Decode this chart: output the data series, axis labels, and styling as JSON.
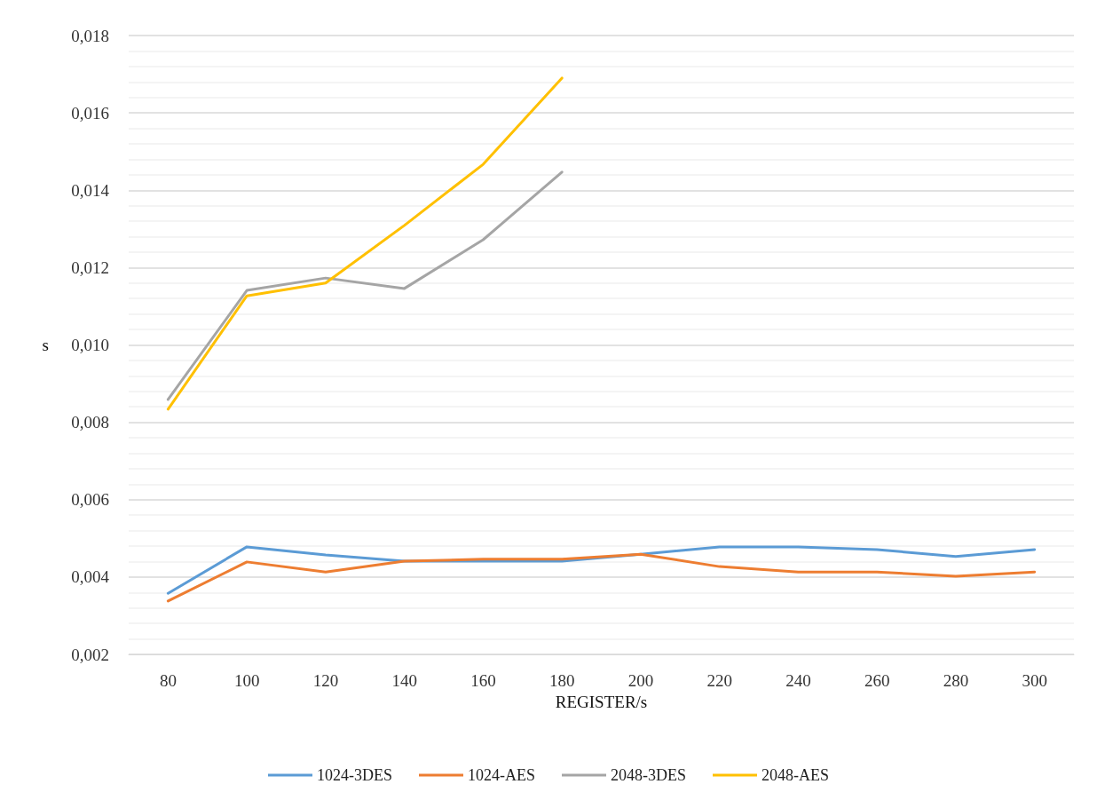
{
  "chart_data": {
    "type": "line",
    "xlabel": "REGISTER/s",
    "ylabel": "s",
    "categories": [
      "80",
      "100",
      "120",
      "140",
      "160",
      "180",
      "200",
      "220",
      "240",
      "260",
      "280",
      "300"
    ],
    "series": [
      {
        "name": "1024-3DES",
        "color": "#5b9bd5",
        "values": [
          0.00358,
          0.00478,
          0.00457,
          0.00441,
          0.00441,
          0.00441,
          0.00459,
          0.00478,
          0.00478,
          0.00471,
          0.00453,
          0.00471
        ]
      },
      {
        "name": "1024-AES",
        "color": "#ed7d31",
        "values": [
          0.00338,
          0.00439,
          0.00413,
          0.00441,
          0.00446,
          0.00446,
          0.00459,
          0.00427,
          0.00413,
          0.00413,
          0.00402,
          0.00413
        ]
      },
      {
        "name": "2048-3DES",
        "color": "#a5a5a5",
        "values": [
          0.00859,
          0.01141,
          0.01173,
          0.01146,
          0.01272,
          0.01447,
          null,
          null,
          null,
          null,
          null,
          null
        ]
      },
      {
        "name": "2048-AES",
        "color": "#ffc000",
        "values": [
          0.00834,
          0.01127,
          0.0116,
          0.01309,
          0.01467,
          0.0169,
          null,
          null,
          null,
          null,
          null,
          null
        ]
      }
    ],
    "ylim": [
      0.002,
      0.018
    ],
    "yticks": [
      {
        "value": 0.002,
        "label": "0,002"
      },
      {
        "value": 0.004,
        "label": "0,004"
      },
      {
        "value": 0.006,
        "label": "0,006"
      },
      {
        "value": 0.008,
        "label": "0,008"
      },
      {
        "value": 0.01,
        "label": "0,010"
      },
      {
        "value": 0.012,
        "label": "0,012"
      },
      {
        "value": 0.014,
        "label": "0,014"
      },
      {
        "value": 0.016,
        "label": "0,016"
      },
      {
        "value": 0.018,
        "label": "0,018"
      }
    ],
    "grid": "y",
    "legend": "bottom",
    "marker": "none",
    "line_style": "solid"
  }
}
